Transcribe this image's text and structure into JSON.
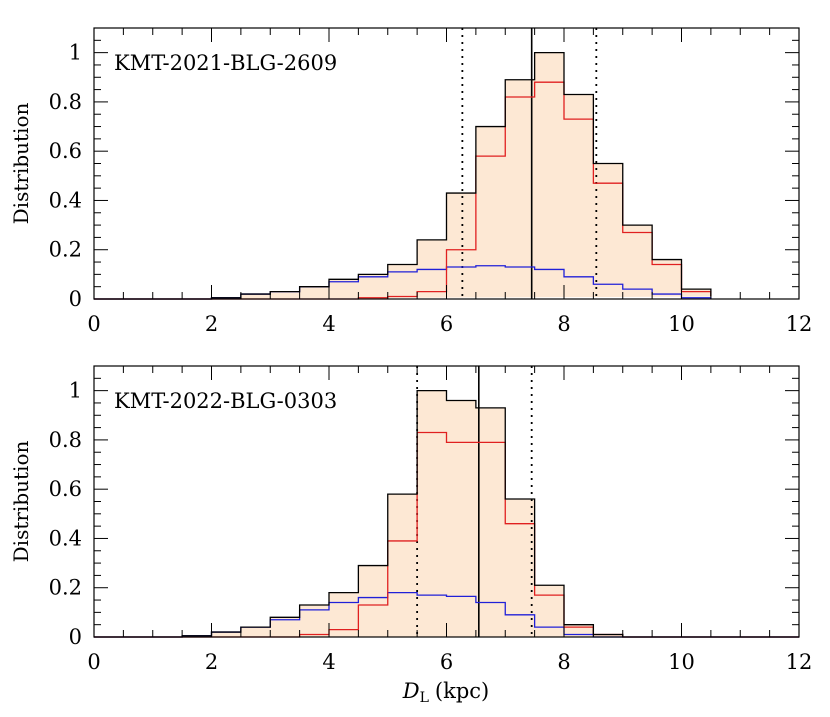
{
  "colors": {
    "total": "#000000",
    "disk_red": "#e02020",
    "bulge_blue": "#2020d8",
    "fill": "#fde8d4"
  },
  "chart_data": [
    {
      "type": "histogram",
      "title": "KMT-2021-BLG-2609",
      "ylabel": "Distribution",
      "xlim": [
        0,
        12
      ],
      "ylim": [
        0,
        1.1
      ],
      "xticks": [
        "0",
        "2",
        "4",
        "6",
        "8",
        "10",
        "12"
      ],
      "yticks": [
        "0",
        "0.2",
        "0.4",
        "0.6",
        "0.8",
        "1"
      ],
      "bin_edges": [
        0,
        0.5,
        1,
        1.5,
        2,
        2.5,
        3,
        3.5,
        4,
        4.5,
        5,
        5.5,
        6,
        6.5,
        7,
        7.5,
        8,
        8.5,
        9,
        9.5,
        10,
        10.5
      ],
      "series": [
        {
          "color_key": "total",
          "values": [
            0.0,
            0.0,
            0.0,
            0.0,
            0.005,
            0.02,
            0.03,
            0.05,
            0.08,
            0.1,
            0.14,
            0.24,
            0.43,
            0.7,
            0.89,
            1.0,
            0.83,
            0.55,
            0.3,
            0.16,
            0.04,
            0.01
          ]
        },
        {
          "color_key": "disk_red",
          "values": [
            0.0,
            0.0,
            0.0,
            0.0,
            0.0,
            0.0,
            0.0,
            0.0,
            0.0,
            0.005,
            0.01,
            0.03,
            0.2,
            0.58,
            0.82,
            0.88,
            0.73,
            0.47,
            0.27,
            0.14,
            0.03,
            0.01
          ]
        },
        {
          "color_key": "bulge_blue",
          "values": [
            0.0,
            0.0,
            0.0,
            0.0,
            0.005,
            0.02,
            0.03,
            0.05,
            0.07,
            0.09,
            0.11,
            0.12,
            0.13,
            0.135,
            0.13,
            0.12,
            0.09,
            0.06,
            0.04,
            0.02,
            0.005,
            0.0
          ]
        }
      ],
      "vlines": [
        {
          "x": 7.45,
          "style": "solid"
        },
        {
          "x": 6.27,
          "style": "dotted"
        },
        {
          "x": 8.55,
          "style": "dotted"
        }
      ]
    },
    {
      "type": "histogram",
      "title": "KMT-2022-BLG-0303",
      "ylabel": "Distribution",
      "xlabel": "D_L (kpc)",
      "xlim": [
        0,
        12
      ],
      "ylim": [
        0,
        1.1
      ],
      "xticks": [
        "0",
        "2",
        "4",
        "6",
        "8",
        "10",
        "12"
      ],
      "yticks": [
        "0",
        "0.2",
        "0.4",
        "0.6",
        "0.8",
        "1"
      ],
      "bin_edges": [
        0,
        0.5,
        1,
        1.5,
        2,
        2.5,
        3,
        3.5,
        4,
        4.5,
        5,
        5.5,
        6,
        6.5,
        7,
        7.5,
        8,
        8.5,
        9
      ],
      "series": [
        {
          "color_key": "total",
          "values": [
            0.0,
            0.0,
            0.0,
            0.005,
            0.02,
            0.04,
            0.08,
            0.13,
            0.18,
            0.29,
            0.58,
            1.0,
            0.96,
            0.93,
            0.56,
            0.21,
            0.05,
            0.01
          ]
        },
        {
          "color_key": "disk_red",
          "values": [
            0.0,
            0.0,
            0.0,
            0.0,
            0.0,
            0.0,
            0.0,
            0.01,
            0.03,
            0.13,
            0.39,
            0.83,
            0.79,
            0.79,
            0.46,
            0.17,
            0.04,
            0.01
          ]
        },
        {
          "color_key": "bulge_blue",
          "values": [
            0.0,
            0.0,
            0.0,
            0.005,
            0.02,
            0.04,
            0.07,
            0.11,
            0.14,
            0.16,
            0.18,
            0.17,
            0.165,
            0.14,
            0.09,
            0.04,
            0.01,
            0.0
          ]
        }
      ],
      "vlines": [
        {
          "x": 6.55,
          "style": "solid"
        },
        {
          "x": 5.5,
          "style": "dotted"
        },
        {
          "x": 7.45,
          "style": "dotted"
        }
      ]
    }
  ],
  "figure": {
    "xlabel_main": "D",
    "xlabel_sub": "L",
    "xlabel_unit": "(kpc)"
  }
}
